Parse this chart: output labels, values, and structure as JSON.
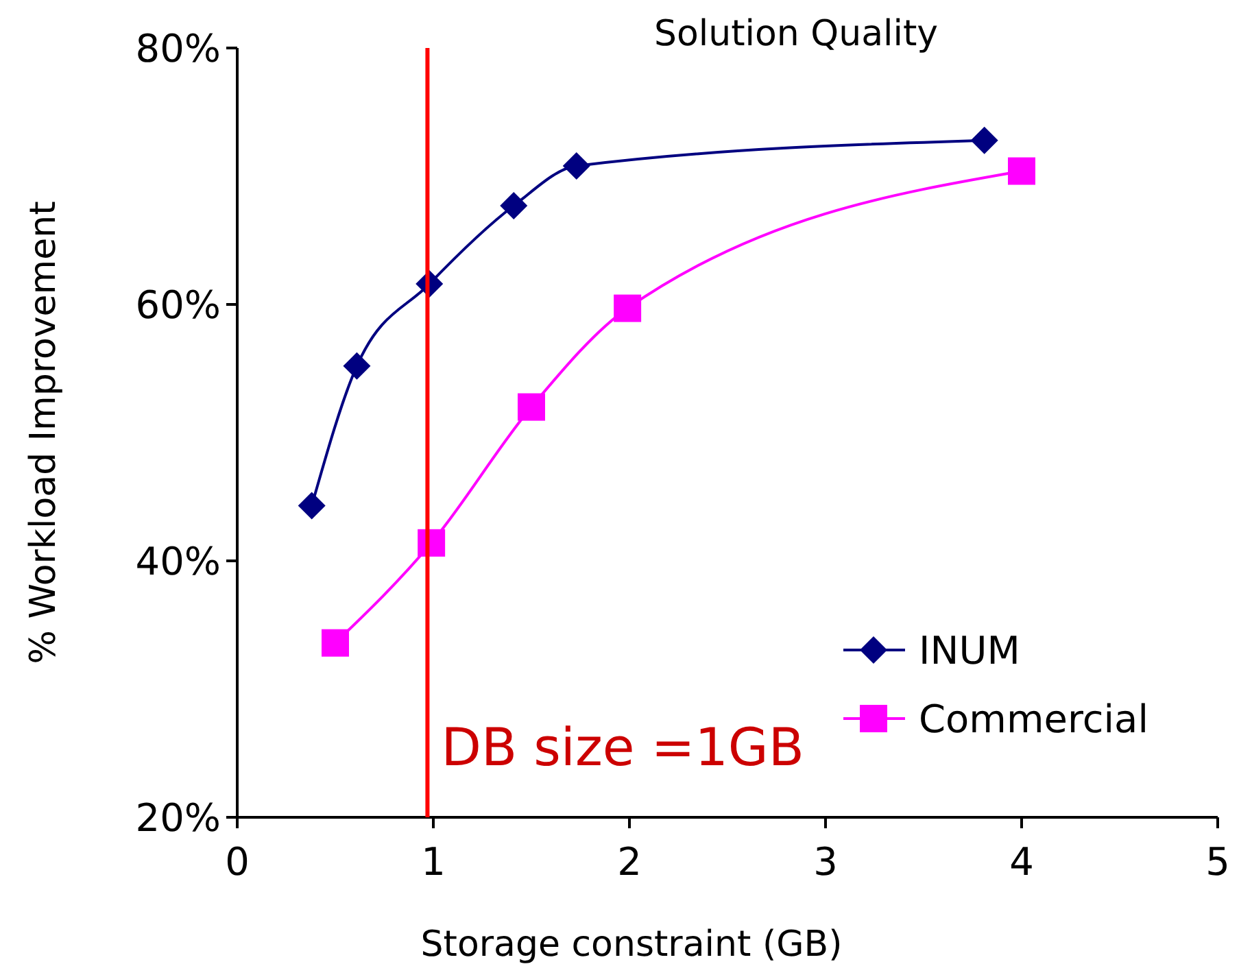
{
  "chart_data": {
    "type": "line",
    "title": "Solution Quality",
    "xlabel": "Storage constraint (GB)",
    "ylabel": "% Workload Improvement",
    "xlim": [
      0,
      5
    ],
    "xticks": [
      0,
      1,
      2,
      3,
      4,
      5
    ],
    "ylim": [
      20,
      80
    ],
    "yticks": [
      {
        "value": 20,
        "label": "20%"
      },
      {
        "value": 40,
        "label": "40%"
      },
      {
        "value": 60,
        "label": "60%"
      },
      {
        "value": 80,
        "label": "80%"
      }
    ],
    "series": [
      {
        "name": "INUM",
        "color": "#000080",
        "marker": "diamond",
        "x": [
          0.38,
          0.61,
          0.98,
          1.41,
          1.73,
          3.81
        ],
        "values": [
          44.3,
          55.2,
          61.6,
          67.7,
          70.8,
          72.8
        ]
      },
      {
        "name": "Commercial",
        "color": "#ff00ff",
        "marker": "square",
        "x": [
          0.5,
          0.99,
          1.5,
          1.99,
          4.0
        ],
        "values": [
          33.6,
          41.4,
          52.0,
          59.7,
          70.4
        ]
      }
    ],
    "ref_lines": [
      {
        "axis": "x",
        "value": 0.97,
        "label": "DB size =1GB",
        "color": "#ff0000"
      }
    ],
    "legend": "bottom right",
    "grid": false
  }
}
